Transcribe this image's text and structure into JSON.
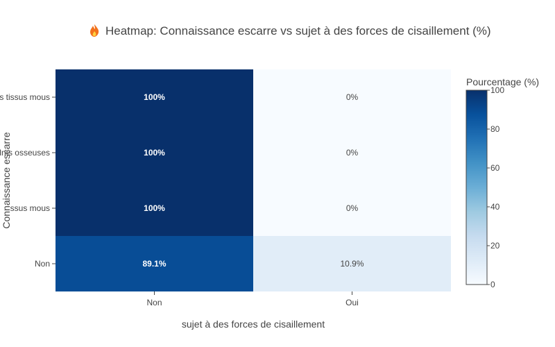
{
  "chart_data": {
    "type": "heatmap",
    "title_icon": "fire-icon",
    "title": "Heatmap: Connaissance escarre vs sujet à des forces de cisaillement (%)",
    "xlabel": "sujet à des forces de cisaillement",
    "ylabel": "Connaissance escarre",
    "x_categories": [
      "Non",
      "Oui"
    ],
    "y_categories": [
      "Non",
      "… tissus mous",
      "… osseuses",
      "… tissus mous"
    ],
    "y_tick_texts": [
      "Non",
      "ssus mous",
      "lnts osseuses",
      "s tissus mous"
    ],
    "values": [
      [
        89.1,
        10.9
      ],
      [
        100,
        0
      ],
      [
        100,
        0
      ],
      [
        100,
        0
      ]
    ],
    "cell_labels": [
      [
        "89.1%",
        "10.9%"
      ],
      [
        "100%",
        "0%"
      ],
      [
        "100%",
        "0%"
      ],
      [
        "100%",
        "0%"
      ]
    ],
    "colorbar": {
      "title": "Pourcentage (%)",
      "range": [
        0,
        100
      ],
      "ticks": [
        0,
        20,
        40,
        60,
        80,
        100
      ],
      "colorscale": [
        [
          0,
          "#f7fbff"
        ],
        [
          0.125,
          "#deebf7"
        ],
        [
          0.25,
          "#c6dbef"
        ],
        [
          0.375,
          "#9ecae1"
        ],
        [
          0.5,
          "#6baed6"
        ],
        [
          0.625,
          "#4292c6"
        ],
        [
          0.75,
          "#2171b5"
        ],
        [
          0.875,
          "#08519c"
        ],
        [
          1,
          "#08306b"
        ]
      ]
    }
  }
}
